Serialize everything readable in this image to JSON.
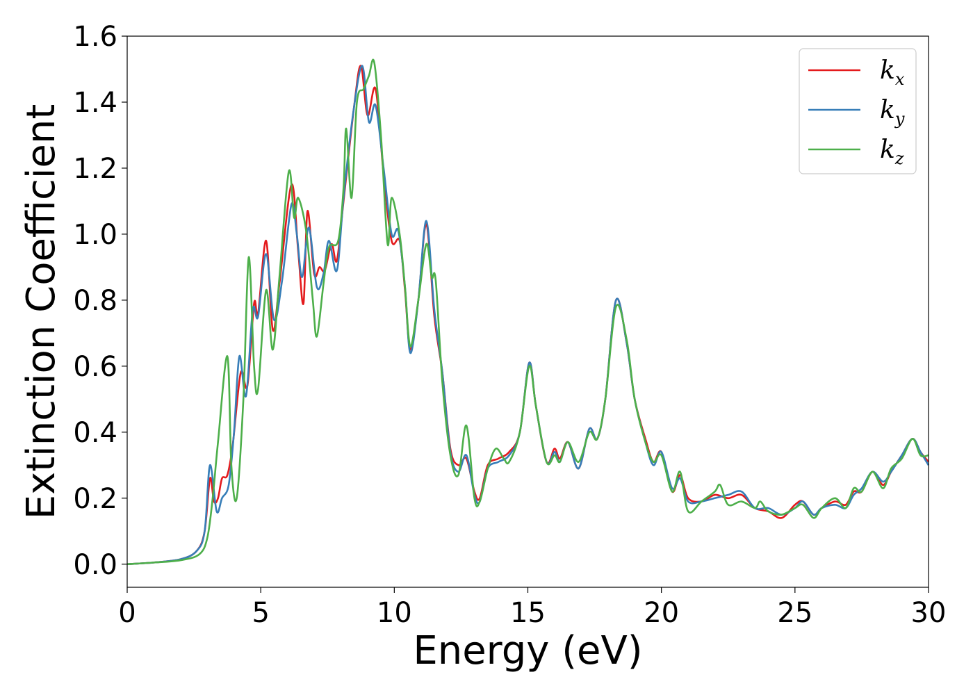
{
  "chart_data": {
    "type": "line",
    "xlabel": "Energy (eV)",
    "ylabel": "Extinction Coefficient",
    "xlim": [
      0,
      30
    ],
    "ylim": [
      -0.07,
      1.6
    ],
    "xticks": [
      0,
      5,
      10,
      15,
      20,
      25,
      30
    ],
    "xtick_labels": [
      "0",
      "5",
      "10",
      "15",
      "20",
      "25",
      "30"
    ],
    "yticks": [
      0.0,
      0.2,
      0.4,
      0.6,
      0.8,
      1.0,
      1.2,
      1.4,
      1.6
    ],
    "ytick_labels": [
      "0.0",
      "0.2",
      "0.4",
      "0.6",
      "0.8",
      "1.0",
      "1.2",
      "1.4",
      "1.6"
    ],
    "grid": false,
    "legend_position": "top-right",
    "series": [
      {
        "name": "k_x",
        "label_main": "k",
        "label_sub": "x",
        "color": "#e41a1c",
        "points": [
          [
            0,
            0
          ],
          [
            1,
            0.005
          ],
          [
            2,
            0.015
          ],
          [
            2.6,
            0.04
          ],
          [
            2.9,
            0.1
          ],
          [
            3.1,
            0.26
          ],
          [
            3.25,
            0.19
          ],
          [
            3.4,
            0.2
          ],
          [
            3.55,
            0.26
          ],
          [
            3.75,
            0.27
          ],
          [
            3.95,
            0.36
          ],
          [
            4.25,
            0.58
          ],
          [
            4.5,
            0.54
          ],
          [
            4.75,
            0.79
          ],
          [
            4.9,
            0.76
          ],
          [
            5.2,
            0.98
          ],
          [
            5.45,
            0.71
          ],
          [
            5.7,
            0.85
          ],
          [
            6.15,
            1.15
          ],
          [
            6.4,
            0.95
          ],
          [
            6.6,
            0.79
          ],
          [
            6.75,
            1.07
          ],
          [
            7.0,
            0.88
          ],
          [
            7.2,
            0.9
          ],
          [
            7.4,
            0.89
          ],
          [
            7.65,
            0.97
          ],
          [
            7.85,
            0.92
          ],
          [
            8.1,
            1.1
          ],
          [
            8.5,
            1.39
          ],
          [
            8.75,
            1.51
          ],
          [
            9.0,
            1.36
          ],
          [
            9.3,
            1.44
          ],
          [
            9.6,
            1.18
          ],
          [
            9.9,
            0.98
          ],
          [
            10.2,
            0.98
          ],
          [
            10.4,
            0.83
          ],
          [
            10.6,
            0.65
          ],
          [
            10.9,
            0.8
          ],
          [
            11.2,
            1.03
          ],
          [
            11.5,
            0.75
          ],
          [
            11.8,
            0.58
          ],
          [
            12.1,
            0.35
          ],
          [
            12.4,
            0.3
          ],
          [
            12.7,
            0.32
          ],
          [
            13.0,
            0.22
          ],
          [
            13.2,
            0.2
          ],
          [
            13.5,
            0.3
          ],
          [
            13.9,
            0.32
          ],
          [
            14.3,
            0.34
          ],
          [
            14.7,
            0.4
          ],
          [
            15.05,
            0.61
          ],
          [
            15.3,
            0.48
          ],
          [
            15.7,
            0.31
          ],
          [
            16.0,
            0.35
          ],
          [
            16.2,
            0.32
          ],
          [
            16.5,
            0.37
          ],
          [
            16.9,
            0.29
          ],
          [
            17.3,
            0.41
          ],
          [
            17.6,
            0.38
          ],
          [
            17.9,
            0.5
          ],
          [
            18.3,
            0.8
          ],
          [
            18.7,
            0.67
          ],
          [
            19.0,
            0.5
          ],
          [
            19.4,
            0.38
          ],
          [
            19.7,
            0.31
          ],
          [
            20.0,
            0.34
          ],
          [
            20.4,
            0.22
          ],
          [
            20.7,
            0.27
          ],
          [
            21.0,
            0.2
          ],
          [
            21.5,
            0.19
          ],
          [
            22.0,
            0.21
          ],
          [
            22.5,
            0.2
          ],
          [
            23.0,
            0.21
          ],
          [
            23.5,
            0.17
          ],
          [
            24.0,
            0.16
          ],
          [
            24.5,
            0.14
          ],
          [
            25.0,
            0.18
          ],
          [
            25.3,
            0.19
          ],
          [
            25.7,
            0.15
          ],
          [
            26.0,
            0.17
          ],
          [
            26.5,
            0.19
          ],
          [
            26.9,
            0.18
          ],
          [
            27.2,
            0.22
          ],
          [
            27.5,
            0.22
          ],
          [
            27.9,
            0.28
          ],
          [
            28.3,
            0.24
          ],
          [
            28.6,
            0.28
          ],
          [
            29.0,
            0.33
          ],
          [
            29.4,
            0.38
          ],
          [
            29.7,
            0.34
          ],
          [
            30.0,
            0.31
          ]
        ]
      },
      {
        "name": "k_y",
        "label_main": "k",
        "label_sub": "y",
        "color": "#377eb8",
        "points": [
          [
            0,
            0
          ],
          [
            1,
            0.005
          ],
          [
            2,
            0.015
          ],
          [
            2.6,
            0.04
          ],
          [
            2.9,
            0.1
          ],
          [
            3.1,
            0.3
          ],
          [
            3.35,
            0.16
          ],
          [
            3.55,
            0.2
          ],
          [
            3.8,
            0.24
          ],
          [
            4.0,
            0.4
          ],
          [
            4.2,
            0.63
          ],
          [
            4.45,
            0.51
          ],
          [
            4.7,
            0.77
          ],
          [
            4.9,
            0.75
          ],
          [
            5.2,
            0.94
          ],
          [
            5.5,
            0.74
          ],
          [
            5.8,
            0.86
          ],
          [
            6.15,
            1.09
          ],
          [
            6.35,
            1.0
          ],
          [
            6.55,
            0.87
          ],
          [
            6.8,
            1.02
          ],
          [
            7.1,
            0.84
          ],
          [
            7.35,
            0.88
          ],
          [
            7.55,
            0.98
          ],
          [
            7.85,
            0.89
          ],
          [
            8.1,
            1.11
          ],
          [
            8.45,
            1.36
          ],
          [
            8.8,
            1.51
          ],
          [
            9.05,
            1.34
          ],
          [
            9.3,
            1.39
          ],
          [
            9.6,
            1.2
          ],
          [
            9.9,
            1.0
          ],
          [
            10.15,
            1.01
          ],
          [
            10.4,
            0.84
          ],
          [
            10.6,
            0.64
          ],
          [
            10.9,
            0.8
          ],
          [
            11.2,
            1.04
          ],
          [
            11.5,
            0.77
          ],
          [
            11.8,
            0.58
          ],
          [
            12.1,
            0.34
          ],
          [
            12.4,
            0.28
          ],
          [
            12.7,
            0.33
          ],
          [
            13.0,
            0.21
          ],
          [
            13.2,
            0.19
          ],
          [
            13.5,
            0.29
          ],
          [
            13.9,
            0.31
          ],
          [
            14.3,
            0.33
          ],
          [
            14.7,
            0.4
          ],
          [
            15.05,
            0.61
          ],
          [
            15.3,
            0.48
          ],
          [
            15.7,
            0.31
          ],
          [
            16.0,
            0.34
          ],
          [
            16.2,
            0.31
          ],
          [
            16.5,
            0.37
          ],
          [
            16.9,
            0.29
          ],
          [
            17.3,
            0.41
          ],
          [
            17.6,
            0.38
          ],
          [
            17.9,
            0.5
          ],
          [
            18.3,
            0.8
          ],
          [
            18.7,
            0.67
          ],
          [
            19.0,
            0.5
          ],
          [
            19.4,
            0.37
          ],
          [
            19.7,
            0.3
          ],
          [
            20.0,
            0.34
          ],
          [
            20.4,
            0.23
          ],
          [
            20.7,
            0.26
          ],
          [
            21.0,
            0.19
          ],
          [
            21.5,
            0.19
          ],
          [
            22.0,
            0.2
          ],
          [
            22.5,
            0.21
          ],
          [
            23.0,
            0.22
          ],
          [
            23.5,
            0.17
          ],
          [
            24.0,
            0.17
          ],
          [
            24.5,
            0.15
          ],
          [
            25.0,
            0.17
          ],
          [
            25.3,
            0.19
          ],
          [
            25.7,
            0.15
          ],
          [
            26.0,
            0.17
          ],
          [
            26.5,
            0.18
          ],
          [
            26.9,
            0.17
          ],
          [
            27.2,
            0.21
          ],
          [
            27.5,
            0.23
          ],
          [
            27.9,
            0.28
          ],
          [
            28.3,
            0.25
          ],
          [
            28.6,
            0.28
          ],
          [
            29.0,
            0.33
          ],
          [
            29.4,
            0.38
          ],
          [
            29.7,
            0.34
          ],
          [
            30.0,
            0.3
          ]
        ]
      },
      {
        "name": "k_z",
        "label_main": "k",
        "label_sub": "z",
        "color": "#4daf4a",
        "points": [
          [
            0,
            0
          ],
          [
            1,
            0.005
          ],
          [
            2,
            0.012
          ],
          [
            2.7,
            0.03
          ],
          [
            3.0,
            0.08
          ],
          [
            3.2,
            0.2
          ],
          [
            3.4,
            0.37
          ],
          [
            3.75,
            0.63
          ],
          [
            3.9,
            0.3
          ],
          [
            4.1,
            0.2
          ],
          [
            4.35,
            0.5
          ],
          [
            4.55,
            0.93
          ],
          [
            4.75,
            0.6
          ],
          [
            4.9,
            0.53
          ],
          [
            5.2,
            0.83
          ],
          [
            5.45,
            0.65
          ],
          [
            5.7,
            0.87
          ],
          [
            6.05,
            1.19
          ],
          [
            6.25,
            1.05
          ],
          [
            6.4,
            1.11
          ],
          [
            6.7,
            1.01
          ],
          [
            6.95,
            0.8
          ],
          [
            7.1,
            0.69
          ],
          [
            7.35,
            0.85
          ],
          [
            7.55,
            0.96
          ],
          [
            7.9,
            0.98
          ],
          [
            8.1,
            1.14
          ],
          [
            8.2,
            1.32
          ],
          [
            8.4,
            1.11
          ],
          [
            8.6,
            1.4
          ],
          [
            8.85,
            1.44
          ],
          [
            9.05,
            1.48
          ],
          [
            9.25,
            1.52
          ],
          [
            9.5,
            1.3
          ],
          [
            9.75,
            0.97
          ],
          [
            9.9,
            1.11
          ],
          [
            10.2,
            1.0
          ],
          [
            10.4,
            0.84
          ],
          [
            10.6,
            0.66
          ],
          [
            10.9,
            0.8
          ],
          [
            11.2,
            0.97
          ],
          [
            11.4,
            0.87
          ],
          [
            11.55,
            0.86
          ],
          [
            11.8,
            0.55
          ],
          [
            12.1,
            0.33
          ],
          [
            12.4,
            0.27
          ],
          [
            12.7,
            0.42
          ],
          [
            13.0,
            0.2
          ],
          [
            13.2,
            0.19
          ],
          [
            13.5,
            0.29
          ],
          [
            13.8,
            0.35
          ],
          [
            14.1,
            0.32
          ],
          [
            14.3,
            0.31
          ],
          [
            14.7,
            0.4
          ],
          [
            15.05,
            0.6
          ],
          [
            15.3,
            0.48
          ],
          [
            15.7,
            0.31
          ],
          [
            16.0,
            0.33
          ],
          [
            16.2,
            0.31
          ],
          [
            16.5,
            0.37
          ],
          [
            16.9,
            0.31
          ],
          [
            17.3,
            0.4
          ],
          [
            17.6,
            0.38
          ],
          [
            17.9,
            0.5
          ],
          [
            18.3,
            0.78
          ],
          [
            18.7,
            0.68
          ],
          [
            19.0,
            0.5
          ],
          [
            19.4,
            0.37
          ],
          [
            19.7,
            0.31
          ],
          [
            20.0,
            0.33
          ],
          [
            20.4,
            0.22
          ],
          [
            20.7,
            0.28
          ],
          [
            21.0,
            0.16
          ],
          [
            21.5,
            0.19
          ],
          [
            22.0,
            0.22
          ],
          [
            22.2,
            0.24
          ],
          [
            22.5,
            0.18
          ],
          [
            23.0,
            0.19
          ],
          [
            23.5,
            0.17
          ],
          [
            23.7,
            0.19
          ],
          [
            24.0,
            0.16
          ],
          [
            24.5,
            0.15
          ],
          [
            25.0,
            0.17
          ],
          [
            25.3,
            0.18
          ],
          [
            25.7,
            0.14
          ],
          [
            26.0,
            0.17
          ],
          [
            26.5,
            0.2
          ],
          [
            26.9,
            0.17
          ],
          [
            27.2,
            0.23
          ],
          [
            27.5,
            0.22
          ],
          [
            27.9,
            0.28
          ],
          [
            28.3,
            0.23
          ],
          [
            28.6,
            0.29
          ],
          [
            29.0,
            0.32
          ],
          [
            29.4,
            0.38
          ],
          [
            29.7,
            0.33
          ],
          [
            30.0,
            0.33
          ]
        ]
      }
    ]
  }
}
